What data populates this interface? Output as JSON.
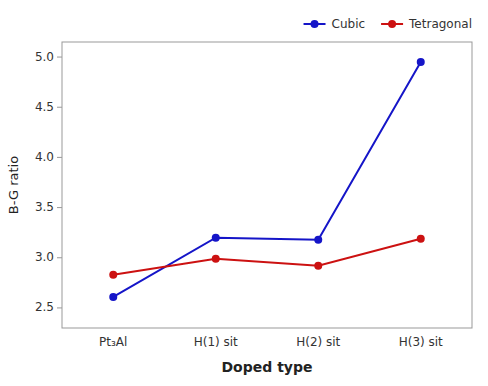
{
  "chart_data": {
    "type": "line",
    "categories": [
      "Pt₃Al",
      "H(1) sit",
      "H(2) sit",
      "H(3) sit"
    ],
    "series": [
      {
        "name": "Cubic",
        "color": "#1515c8",
        "marker": "circle",
        "values": [
          2.61,
          3.2,
          3.18,
          4.95
        ]
      },
      {
        "name": "Tetragonal",
        "color": "#cc1111",
        "marker": "circle",
        "values": [
          2.83,
          2.99,
          2.92,
          3.19
        ]
      }
    ],
    "xlabel": "Doped type",
    "ylabel": "B-G ratio",
    "ylim": [
      2.3,
      5.15
    ],
    "yticks": [
      2.5,
      {
        "value": 3.0,
        "label": "3.0"
      },
      3.5,
      {
        "value": 4.0,
        "label": "4.0"
      },
      4.5,
      {
        "value": 5.0,
        "label": "5.0"
      }
    ],
    "grid": false,
    "legend": "upper right"
  }
}
